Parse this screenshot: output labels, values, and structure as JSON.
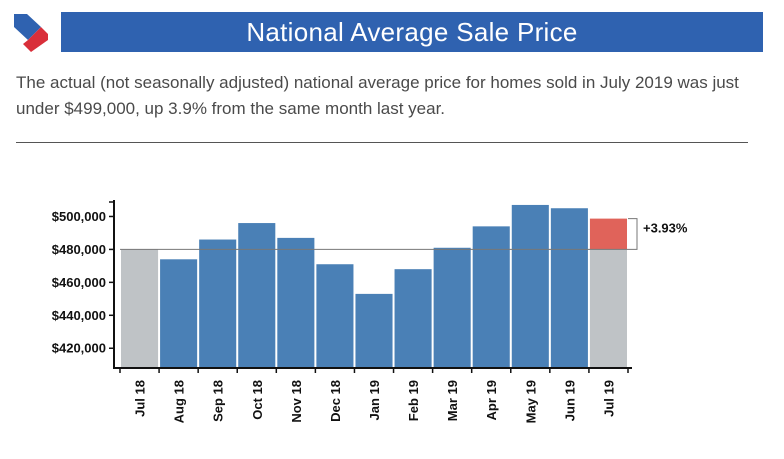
{
  "header": {
    "title": "National Average Sale Price",
    "subtitle": "The actual (not seasonally adjusted) national average price for homes sold in July 2019 was just under $499,000, up 3.9% from the same month last year."
  },
  "colors": {
    "title_bg": "#2f62b0",
    "bar": "#4a80b6",
    "baseline_bar": "#bfc3c6",
    "increase": "#e0635a",
    "logo_blue": "#2f62b0",
    "logo_red": "#d92f3a"
  },
  "chart_data": {
    "type": "bar",
    "title": "National Average Sale Price",
    "xlabel": "",
    "ylabel": "",
    "categories": [
      "Jul 18",
      "Aug 18",
      "Sep 18",
      "Oct 18",
      "Nov 18",
      "Dec 18",
      "Jan 19",
      "Feb 19",
      "Mar 19",
      "Apr 19",
      "May 19",
      "Jun 19",
      "Jul 19"
    ],
    "values": [
      480000,
      474000,
      486000,
      496000,
      487000,
      471000,
      453000,
      468000,
      481000,
      494000,
      507000,
      505000,
      498700
    ],
    "y_tick_values": [
      420000,
      440000,
      460000,
      480000,
      500000
    ],
    "y_tick_labels": [
      "$420,000",
      "$440,000",
      "$460,000",
      "$480,000",
      "$500,000"
    ],
    "ylim": [
      408000,
      510000
    ],
    "reference_value": 480000,
    "change_label": "+3.93%",
    "grid": false
  }
}
